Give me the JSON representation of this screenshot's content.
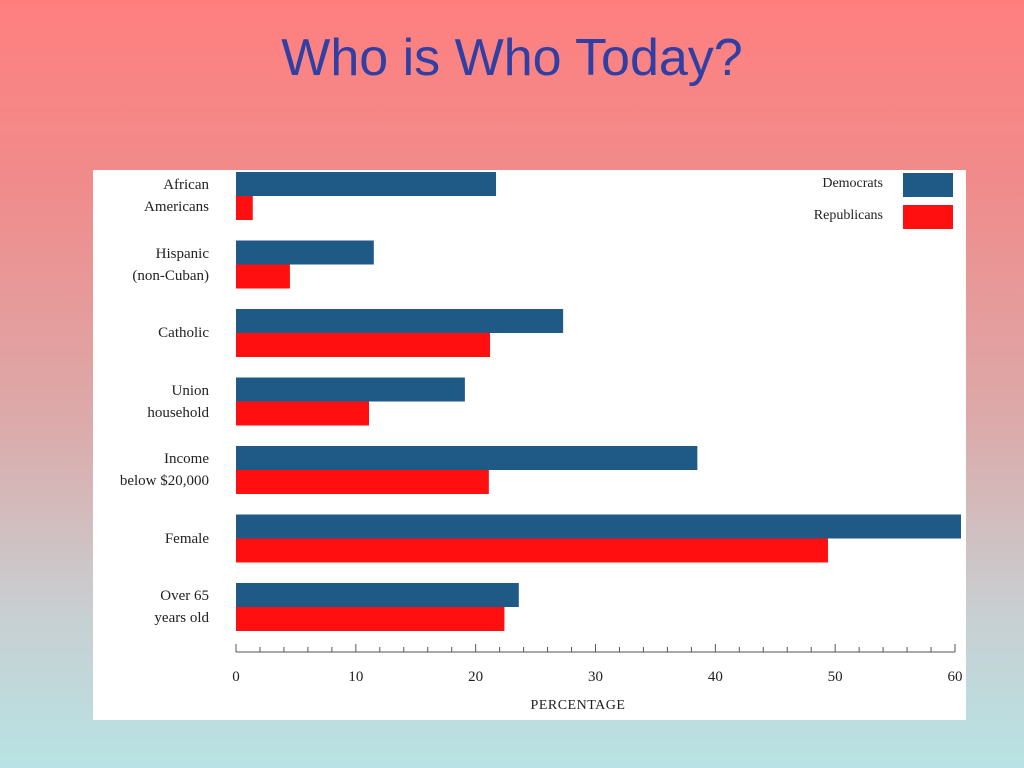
{
  "slide": {
    "title": "Who is Who Today?"
  },
  "chart_data": {
    "type": "bar",
    "orientation": "horizontal",
    "categories": [
      [
        "African",
        "Americans"
      ],
      [
        "Hispanic",
        "(non-Cuban)"
      ],
      [
        "Catholic"
      ],
      [
        "Union",
        "household"
      ],
      [
        "Income",
        "below $20,000"
      ],
      [
        "Female"
      ],
      [
        "Over 65",
        "years old"
      ]
    ],
    "series": [
      {
        "name": "Democrats",
        "color": "#1f5a86",
        "values": [
          21.7,
          11.5,
          27.3,
          19.1,
          38.5,
          60.5,
          23.6
        ]
      },
      {
        "name": "Republicans",
        "color": "#ff0f0f",
        "values": [
          1.4,
          4.5,
          21.2,
          11.1,
          21.1,
          49.4,
          22.4
        ]
      }
    ],
    "xlabel": "PERCENTAGE",
    "xlim": [
      0,
      60
    ],
    "xticks": [
      0,
      10,
      20,
      30,
      40,
      50,
      60
    ],
    "legend": "top-right",
    "grid": false
  }
}
